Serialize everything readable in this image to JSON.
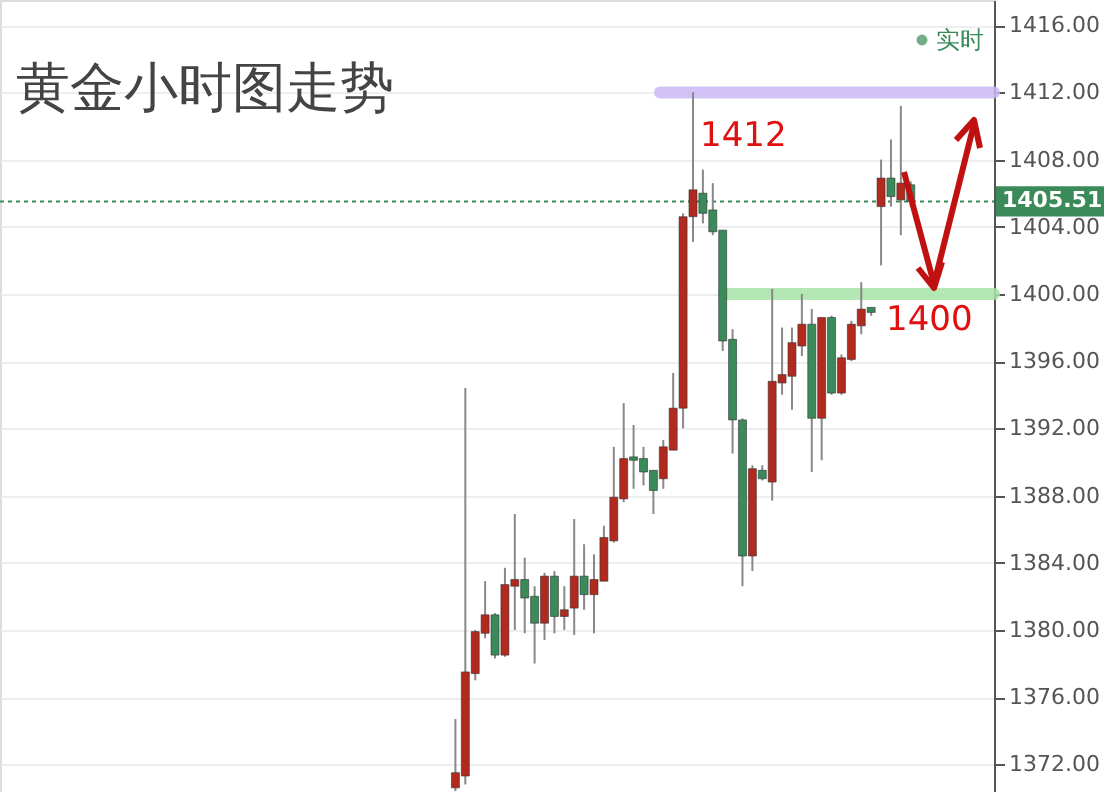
{
  "chart_data": {
    "type": "candlestick",
    "title": "黄金小时图走势",
    "categories": [
      null,
      null,
      null,
      null,
      null,
      null,
      null,
      null,
      null,
      null,
      null,
      null,
      null,
      null,
      null,
      null,
      null,
      null,
      null,
      null,
      null,
      null,
      null,
      null,
      null,
      null,
      null,
      null,
      null,
      null,
      null,
      null,
      null,
      null,
      null,
      null,
      null,
      null,
      null,
      null,
      null,
      null,
      null,
      null,
      null,
      null,
      null
    ],
    "ohlc": [
      [
        1370.6,
        1374.7,
        1370.4,
        1371.5
      ],
      [
        1371.3,
        1394.4,
        1370.8,
        1377.5
      ],
      [
        1377.4,
        1380.0,
        1377.0,
        1379.9
      ],
      [
        1379.8,
        1382.9,
        1379.5,
        1380.9
      ],
      [
        1380.9,
        1381.0,
        1378.3,
        1378.5
      ],
      [
        1378.5,
        1383.7,
        1378.4,
        1382.7
      ],
      [
        1382.6,
        1386.9,
        1380.0,
        1383.0
      ],
      [
        1383.0,
        1384.3,
        1379.8,
        1381.9
      ],
      [
        1382.0,
        1382.6,
        1378.0,
        1380.4
      ],
      [
        1380.4,
        1383.4,
        1379.4,
        1383.2
      ],
      [
        1383.2,
        1383.5,
        1379.8,
        1380.8
      ],
      [
        1380.8,
        1382.6,
        1380.0,
        1381.2
      ],
      [
        1381.3,
        1386.6,
        1379.7,
        1383.2
      ],
      [
        1383.2,
        1385.1,
        1381.2,
        1382.1
      ],
      [
        1382.1,
        1384.5,
        1379.8,
        1383.0
      ],
      [
        1382.9,
        1386.2,
        1382.9,
        1385.5
      ],
      [
        1385.3,
        1390.9,
        1385.2,
        1387.9
      ],
      [
        1387.8,
        1393.5,
        1387.6,
        1390.2
      ],
      [
        1390.3,
        1392.2,
        1388.4,
        1390.1
      ],
      [
        1390.2,
        1390.9,
        1388.6,
        1389.4
      ],
      [
        1389.5,
        1389.5,
        1386.9,
        1388.3
      ],
      [
        1389.0,
        1391.3,
        1388.4,
        1390.9
      ],
      [
        1390.7,
        1395.3,
        1390.7,
        1393.2
      ],
      [
        1393.2,
        1404.8,
        1392.0,
        1404.6
      ],
      [
        1404.6,
        1412.0,
        1403.1,
        1406.2
      ],
      [
        1406.0,
        1407.4,
        1404.2,
        1404.8
      ],
      [
        1405.0,
        1406.6,
        1403.5,
        1403.7
      ],
      [
        1403.8,
        1403.8,
        1396.6,
        1397.2
      ],
      [
        1397.3,
        1397.9,
        1390.5,
        1392.5
      ],
      [
        1392.5,
        1392.6,
        1382.6,
        1384.4
      ],
      [
        1384.4,
        1389.8,
        1383.5,
        1389.6
      ],
      [
        1389.5,
        1389.8,
        1388.9,
        1389.0
      ],
      [
        1388.8,
        1400.3,
        1387.7,
        1394.8
      ],
      [
        1394.7,
        1398.0,
        1394.0,
        1395.2
      ],
      [
        1395.1,
        1398.0,
        1393.1,
        1397.1
      ],
      [
        1396.9,
        1400.0,
        1396.3,
        1398.2
      ],
      [
        1398.2,
        1399.1,
        1389.4,
        1392.6
      ],
      [
        1392.6,
        1398.6,
        1390.1,
        1398.6
      ],
      [
        1398.6,
        1398.7,
        1394.0,
        1394.1
      ],
      [
        1394.1,
        1396.4,
        1394.0,
        1396.2
      ],
      [
        1396.1,
        1398.4,
        1396.0,
        1398.2
      ],
      [
        1398.1,
        1400.7,
        1397.6,
        1399.1
      ],
      [
        1399.2,
        1399.2,
        1398.7,
        1398.9
      ],
      [
        1405.2,
        1408.0,
        1401.7,
        1406.9
      ],
      [
        1406.9,
        1409.2,
        1405.2,
        1405.8
      ],
      [
        1405.6,
        1411.2,
        1403.5,
        1406.6
      ],
      [
        1406.5,
        1406.7,
        1405.2,
        1405.51
      ]
    ],
    "colors": [
      "#b22a1e",
      "#b22a1e",
      "#b22a1e",
      "#b22a1e",
      "#3a8a5a",
      "#b22a1e",
      "#b22a1e",
      "#3a8a5a",
      "#3a8a5a",
      "#b22a1e",
      "#3a8a5a",
      "#b22a1e",
      "#b22a1e",
      "#3a8a5a",
      "#b22a1e",
      "#b22a1e",
      "#b22a1e",
      "#b22a1e",
      "#3a8a5a",
      "#3a8a5a",
      "#3a8a5a",
      "#b22a1e",
      "#b22a1e",
      "#b22a1e",
      "#b22a1e",
      "#3a8a5a",
      "#3a8a5a",
      "#3a8a5a",
      "#3a8a5a",
      "#3a8a5a",
      "#b22a1e",
      "#3a8a5a",
      "#b22a1e",
      "#b22a1e",
      "#b22a1e",
      "#b22a1e",
      "#3a8a5a",
      "#b22a1e",
      "#3a8a5a",
      "#b22a1e",
      "#b22a1e",
      "#b22a1e",
      "#3a8a5a",
      "#b22a1e",
      "#3a8a5a",
      "#b22a1e",
      "#3a8a5a"
    ],
    "ylim": [
      1370.35,
      1417.5
    ],
    "yticks": [
      {
        "value": 1372,
        "label": "1372.00"
      },
      {
        "value": 1376,
        "label": "1376.00"
      },
      {
        "value": 1380,
        "label": "1380.00"
      },
      {
        "value": 1384,
        "label": "1384.00"
      },
      {
        "value": 1388,
        "label": "1388.00"
      },
      {
        "value": 1392,
        "label": "1392.00"
      },
      {
        "value": 1396,
        "label": "1396.00"
      },
      {
        "value": 1400,
        "label": "1400.00"
      },
      {
        "value": 1404,
        "label": "1404.00"
      },
      {
        "value": 1408,
        "label": "1408.00"
      },
      {
        "value": 1412,
        "label": "1412.00"
      },
      {
        "value": 1416,
        "label": "1416.00"
      }
    ],
    "tick_labels": "y",
    "grid": "y",
    "ref_lines": [
      {
        "axis": "y",
        "value": 1412,
        "label": "1412",
        "color": "#c9b8f5",
        "line_style": "solid"
      },
      {
        "axis": "y",
        "value": 1400,
        "label": "1400",
        "color": "#a6e3a6",
        "line_style": "solid"
      },
      {
        "axis": "y",
        "value": 1405.51,
        "label": "1405.51",
        "color": "#3a8a5a",
        "line_style": "dotted"
      }
    ],
    "annotations": [
      "实时"
    ]
  }
}
